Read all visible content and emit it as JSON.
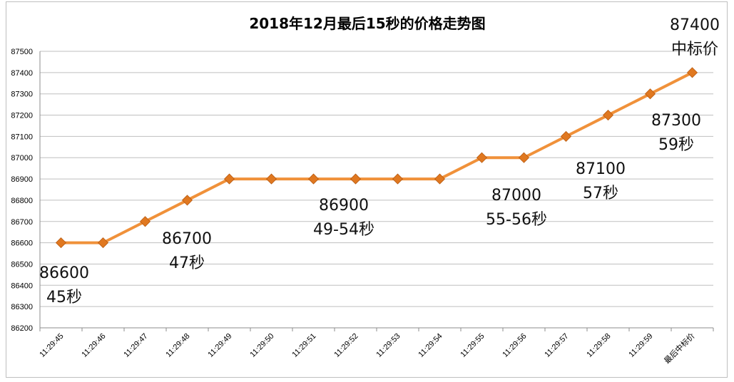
{
  "chart_data": {
    "type": "line",
    "title": "2018年12月最后15秒的价格走势图",
    "categories": [
      "11:29:45",
      "11:29:46",
      "11:29:47",
      "11:29:48",
      "11:29:49",
      "11:29:50",
      "11:29:51",
      "11:29:52",
      "11:29:53",
      "11:29:54",
      "11:29:55",
      "11:29:56",
      "11:29:57",
      "11:29:58",
      "11:29:59",
      "最后中标价"
    ],
    "series": [
      {
        "values": [
          86600,
          86600,
          86700,
          86800,
          86900,
          86900,
          86900,
          86900,
          86900,
          86900,
          87000,
          87000,
          87100,
          87200,
          87300,
          87400
        ]
      }
    ],
    "ylim": [
      86200,
      87500
    ],
    "yticks": [
      "86200",
      "86300",
      "86400",
      "86500",
      "86600",
      "86700",
      "86800",
      "86900",
      "87000",
      "87100",
      "87200",
      "87300",
      "87400",
      "87500"
    ],
    "grid": true,
    "line_color": "#F0913A",
    "marker_color": "#E07820",
    "annotations": [
      {
        "value": "86600",
        "label": "45秒"
      },
      {
        "value": "86700",
        "label": "47秒"
      },
      {
        "value": "86900",
        "label": "49-54秒"
      },
      {
        "value": "87000",
        "label": "55-56秒"
      },
      {
        "value": "87100",
        "label": "57秒"
      },
      {
        "value": "87300",
        "label": "59秒"
      },
      {
        "value": "87400",
        "label": "中标价"
      }
    ]
  }
}
